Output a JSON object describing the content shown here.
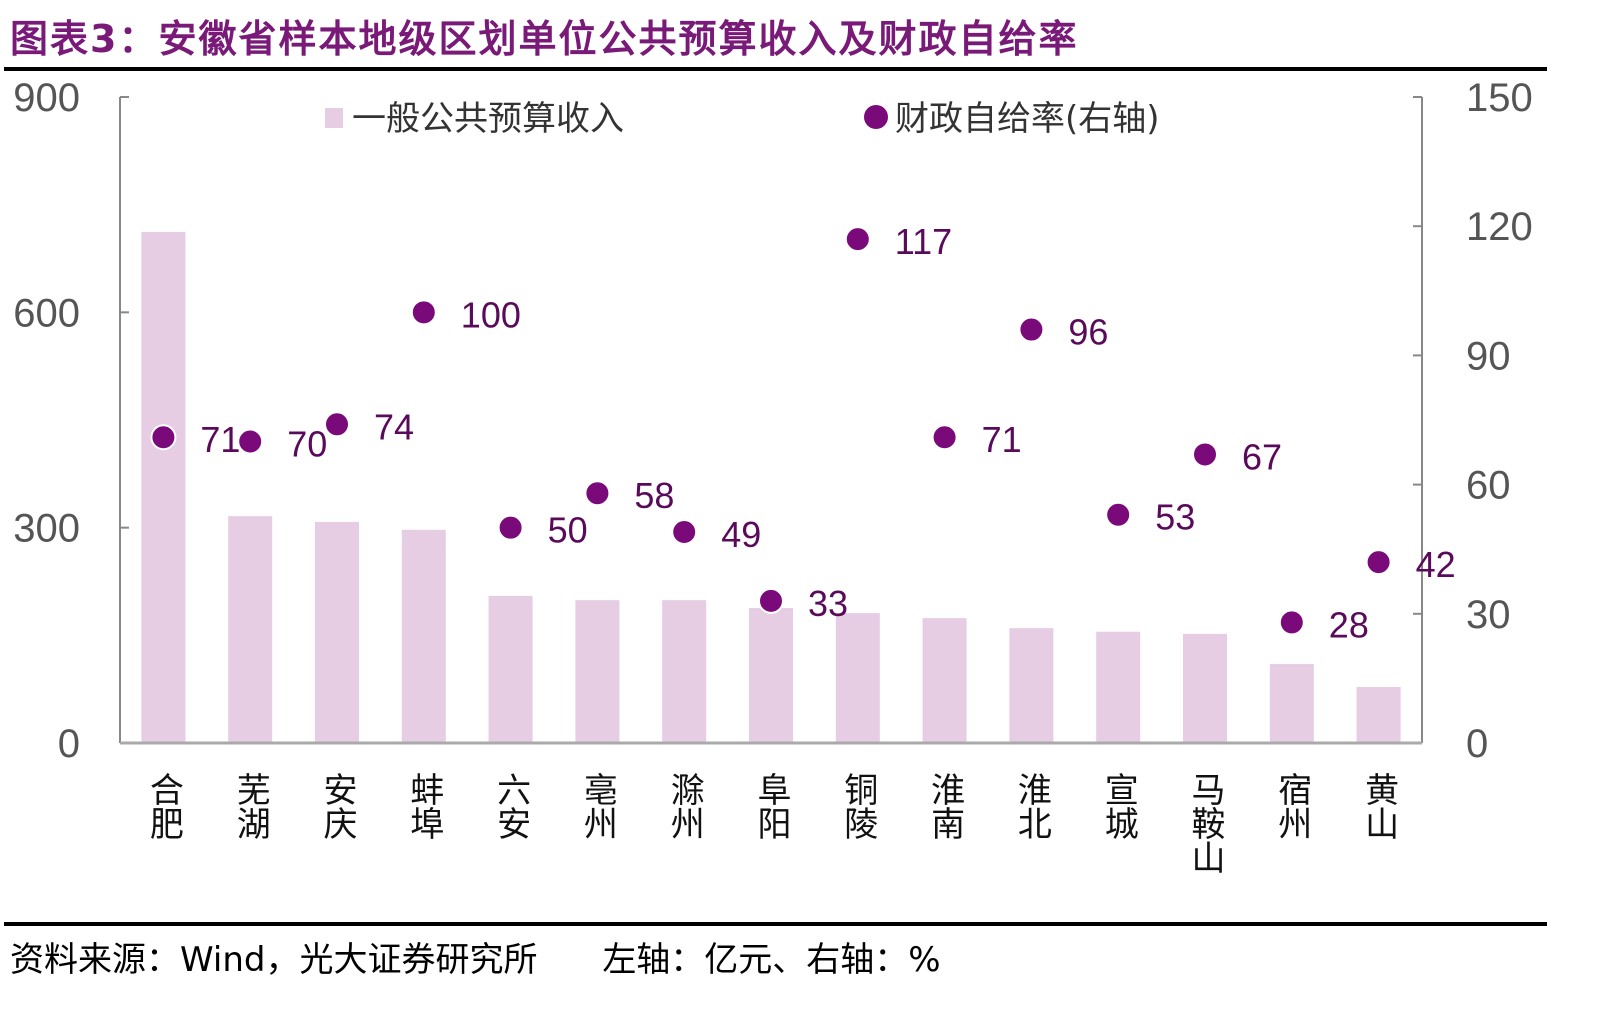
{
  "title": "图表3：安徽省样本地级区划单位公共预算收入及财政自给率",
  "source": "资料来源：Wind，光大证券研究所",
  "units_note": "左轴：亿元、右轴：%",
  "chart_data": {
    "type": "bar",
    "categories": [
      "合肥",
      "芜湖",
      "安庆",
      "蚌埠",
      "六安",
      "亳州",
      "滁州",
      "阜阳",
      "铜陵",
      "淮南",
      "淮北",
      "宣城",
      "马鞍山",
      "宿州",
      "黄山"
    ],
    "series": [
      {
        "name": "一般公共预算收入",
        "type": "bar",
        "axis": "left",
        "color": "#e6cde4",
        "values": [
          712,
          316,
          308,
          297,
          205,
          199,
          199,
          188,
          181,
          174,
          160,
          155,
          152,
          110,
          78
        ]
      },
      {
        "name": "财政自给率(右轴)",
        "type": "scatter",
        "axis": "right",
        "color": "#7a0a7a",
        "values": [
          71,
          70,
          74,
          100,
          50,
          58,
          49,
          33,
          117,
          71,
          96,
          53,
          67,
          28,
          42
        ]
      }
    ],
    "left_axis": {
      "range": [
        0,
        900
      ],
      "ticks": [
        "0",
        "300",
        "600",
        "900"
      ]
    },
    "right_axis": {
      "range": [
        0,
        150
      ],
      "ticks": [
        "0",
        "30",
        "60",
        "90",
        "120",
        "150"
      ]
    },
    "legend_position": "top"
  }
}
